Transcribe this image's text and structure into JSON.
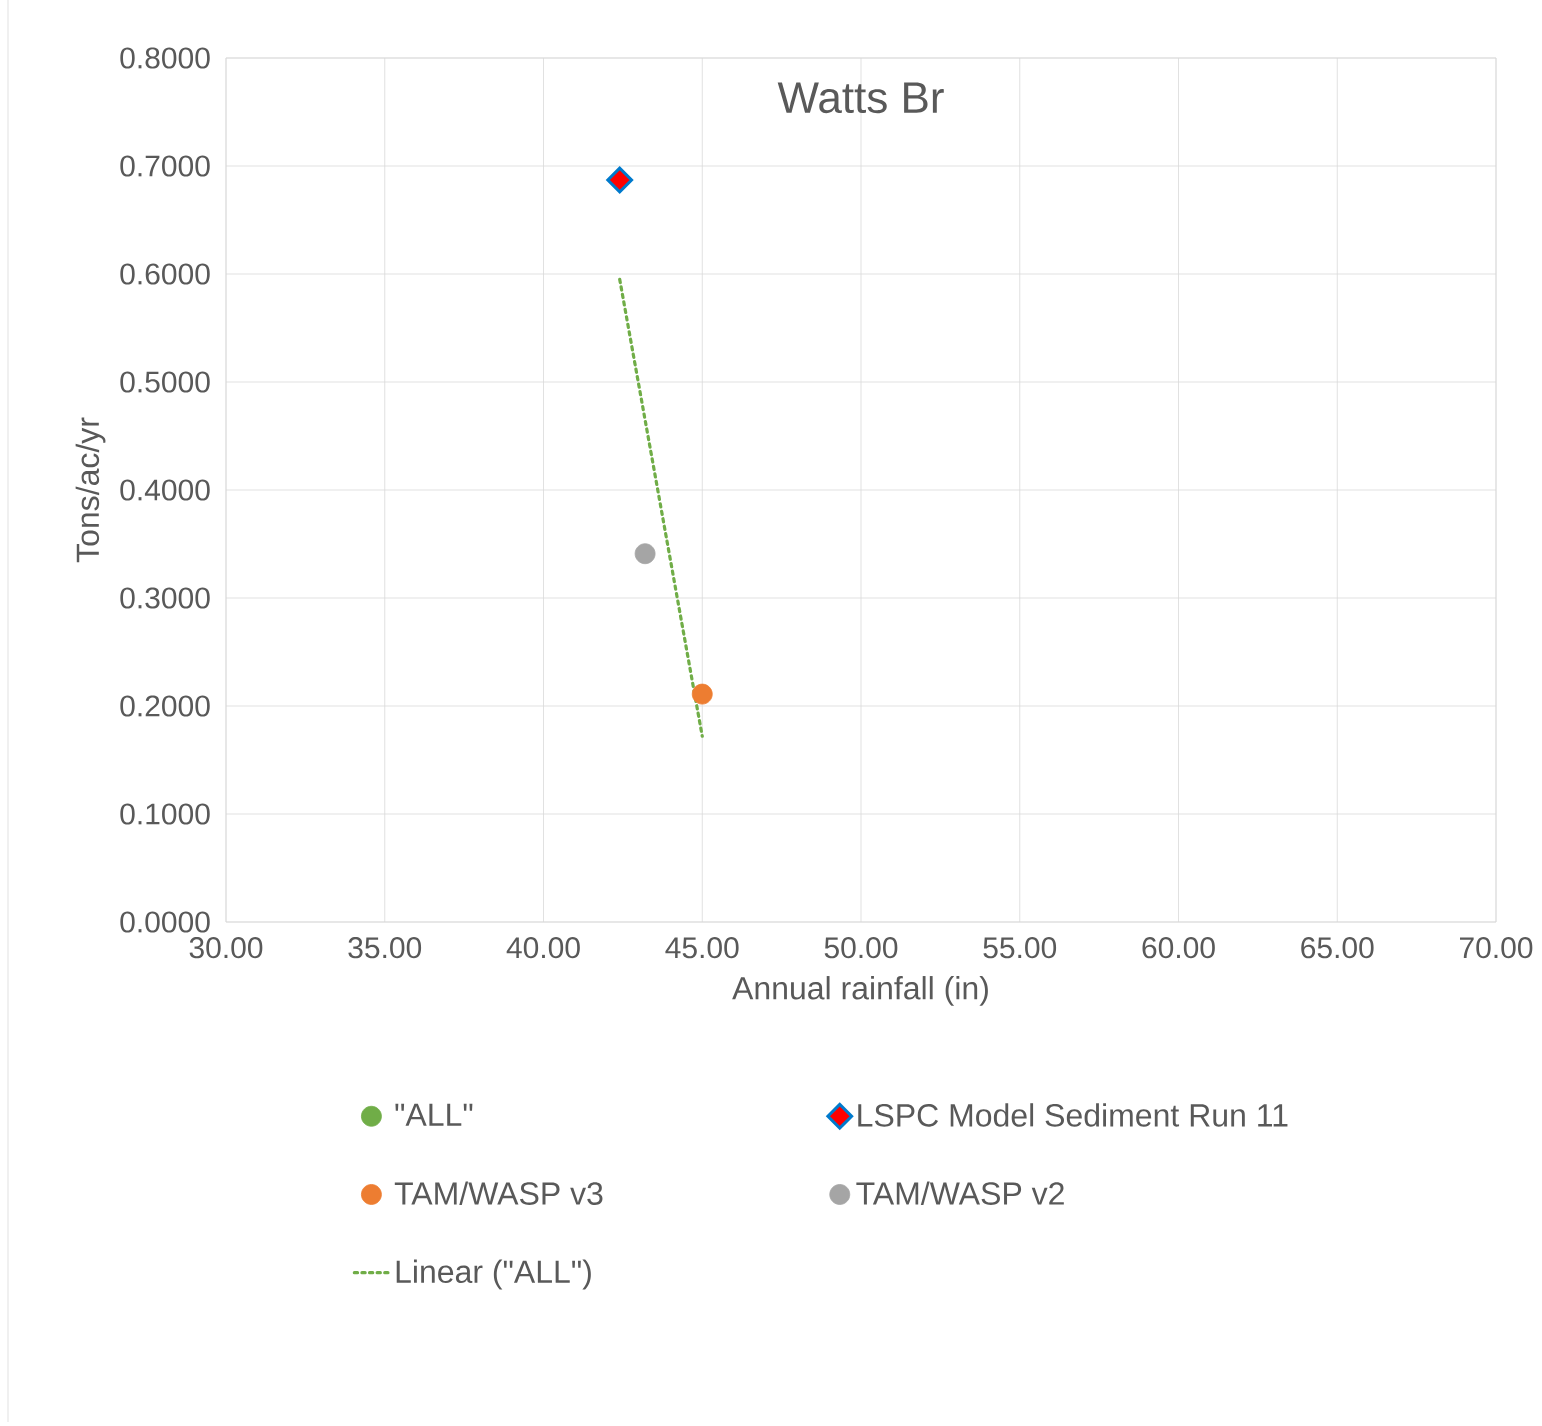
{
  "chart_data": {
    "type": "scatter",
    "title": "Watts Br",
    "xlabel": "Annual rainfall (in)",
    "ylabel": "Tons/ac/yr",
    "series": [
      {
        "name": "\"ALL\"",
        "color": "#70ad47",
        "marker": "circle"
      },
      {
        "name": "LSPC Model Sediment Run 11",
        "color": "#ff0000",
        "marker": "diamond",
        "x": [
          42.4
        ],
        "values": [
          0.687
        ]
      },
      {
        "name": "TAM/WASP v3",
        "color": "#ed7d31",
        "marker": "circle",
        "x": [
          45.0
        ],
        "values": [
          0.211
        ]
      },
      {
        "name": "TAM/WASP v2",
        "color": "#a5a5a5",
        "marker": "circle",
        "x": [
          43.2
        ],
        "values": [
          0.341
        ]
      },
      {
        "name": "Linear (\"ALL\")",
        "type": "line",
        "color": "#70ad47",
        "marker": "none",
        "line_style": "dotted",
        "x": [
          42.4,
          45.0
        ],
        "values": [
          0.595,
          0.172
        ]
      }
    ],
    "xlim": [
      30,
      70
    ],
    "xticks": [
      {
        "value": 30,
        "label": "30.00"
      },
      {
        "value": 35,
        "label": "35.00"
      },
      {
        "value": 40,
        "label": "40.00"
      },
      {
        "value": 45,
        "label": "45.00"
      },
      {
        "value": 50,
        "label": "50.00"
      },
      {
        "value": 55,
        "label": "55.00"
      },
      {
        "value": 60,
        "label": "60.00"
      },
      {
        "value": 65,
        "label": "65.00"
      },
      {
        "value": 70,
        "label": "70.00"
      }
    ],
    "ylim": [
      0,
      0.8
    ],
    "yticks": [
      {
        "value": 0,
        "label": "0.0000"
      },
      {
        "value": 0.1,
        "label": "0.1000"
      },
      {
        "value": 0.2,
        "label": "0.2000"
      },
      {
        "value": 0.3,
        "label": "0.3000"
      },
      {
        "value": 0.4,
        "label": "0.4000"
      },
      {
        "value": 0.5,
        "label": "0.5000"
      },
      {
        "value": 0.6,
        "label": "0.6000"
      },
      {
        "value": 0.7,
        "label": "0.7000"
      },
      {
        "value": 0.8,
        "label": "0.8000"
      }
    ],
    "grid": true,
    "legend": "bottom"
  }
}
